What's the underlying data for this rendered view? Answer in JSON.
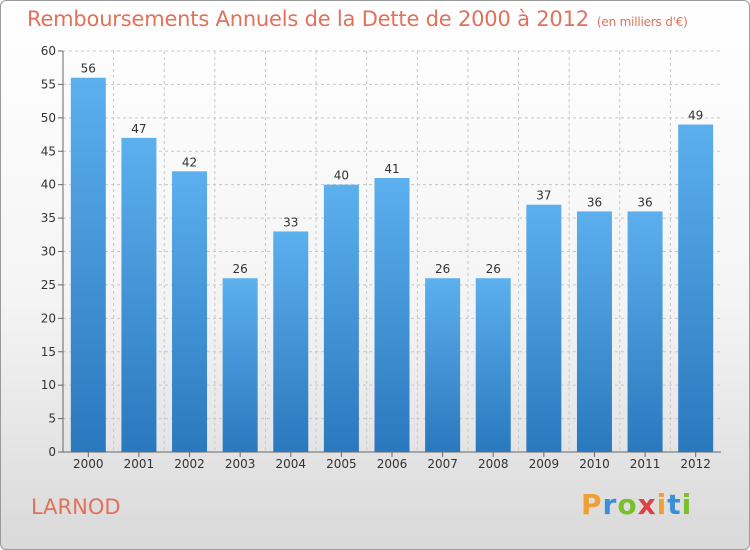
{
  "title": "Remboursements Annuels de la Dette de 2000 à 2012",
  "unit_note": "(en milliers d'€)",
  "commune": "LARNOD",
  "logo": {
    "text": "Proxiti",
    "letters": [
      {
        "char": "P",
        "color": "#f0a030"
      },
      {
        "char": "r",
        "color": "#3b8fd6"
      },
      {
        "char": "o",
        "color": "#7bbf2a"
      },
      {
        "char": "x",
        "color": "#e04040"
      },
      {
        "char": "i",
        "color": "#f0a030"
      },
      {
        "char": "t",
        "color": "#3b8fd6"
      },
      {
        "char": "i",
        "color": "#7bbf2a"
      }
    ]
  },
  "colors": {
    "bar_top": "#5cb0ee",
    "bar_bottom": "#2a78be",
    "title": "#e2715a",
    "grid": "#c8c8c8"
  },
  "chart_data": {
    "type": "bar",
    "title": "Remboursements Annuels de la Dette de 2000 à 2012",
    "subtitle": "(en milliers d'€)",
    "xlabel": "",
    "ylabel": "",
    "categories": [
      "2000",
      "2001",
      "2002",
      "2003",
      "2004",
      "2005",
      "2006",
      "2007",
      "2008",
      "2009",
      "2010",
      "2011",
      "2012"
    ],
    "values": [
      56,
      47,
      42,
      26,
      33,
      40,
      41,
      26,
      26,
      37,
      36,
      36,
      49
    ],
    "ylim": [
      0,
      60
    ],
    "yticks": [
      0,
      5,
      10,
      15,
      20,
      25,
      30,
      35,
      40,
      45,
      50,
      55,
      60
    ],
    "grid": true,
    "data_labels": true
  }
}
